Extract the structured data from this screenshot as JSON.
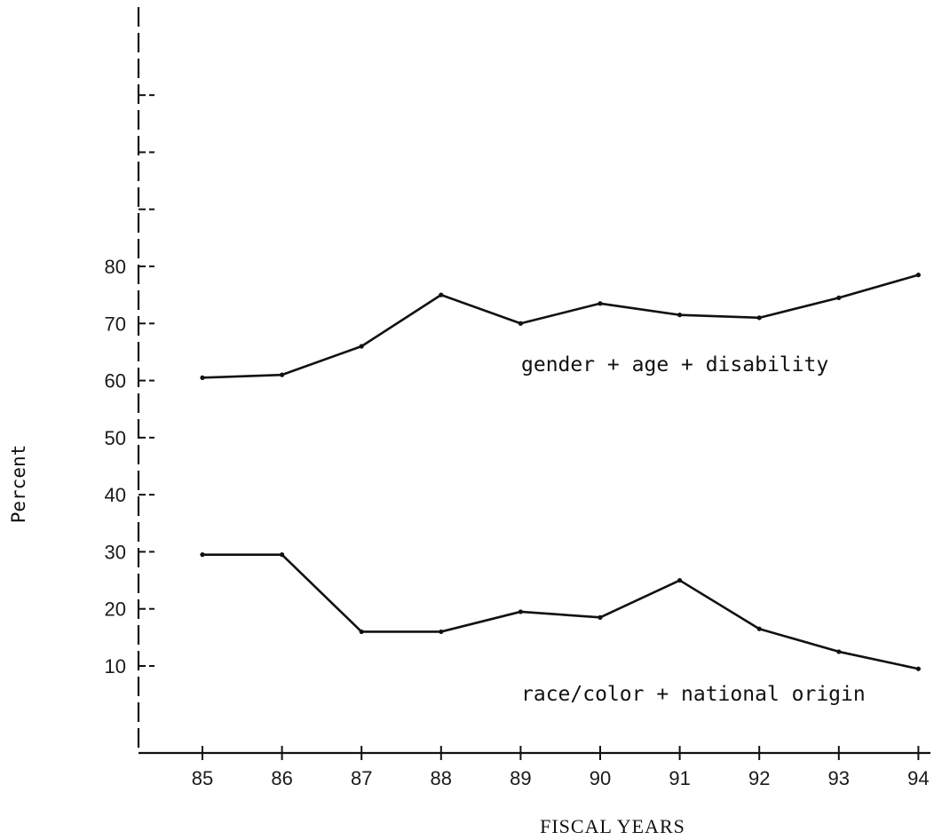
{
  "chart_data": {
    "type": "line",
    "title": "",
    "xlabel": "FISCAL YEARS",
    "ylabel": "Percent",
    "categories": [
      "85",
      "86",
      "87",
      "88",
      "89",
      "90",
      "91",
      "92",
      "93",
      "94"
    ],
    "yticks": [
      10,
      20,
      30,
      40,
      50,
      60,
      70,
      80
    ],
    "ylim": [
      0,
      125
    ],
    "series": [
      {
        "name": "gender + age + disability",
        "values": [
          60.5,
          61,
          66,
          75,
          70,
          73.5,
          71.5,
          71,
          74.5,
          78.5
        ]
      },
      {
        "name": "race/color + national origin",
        "values": [
          29.5,
          29.5,
          16,
          16,
          19.5,
          18.5,
          25,
          16.5,
          12.5,
          9.5
        ]
      }
    ],
    "grid": false,
    "legend": "none",
    "line_color": "#111111"
  }
}
